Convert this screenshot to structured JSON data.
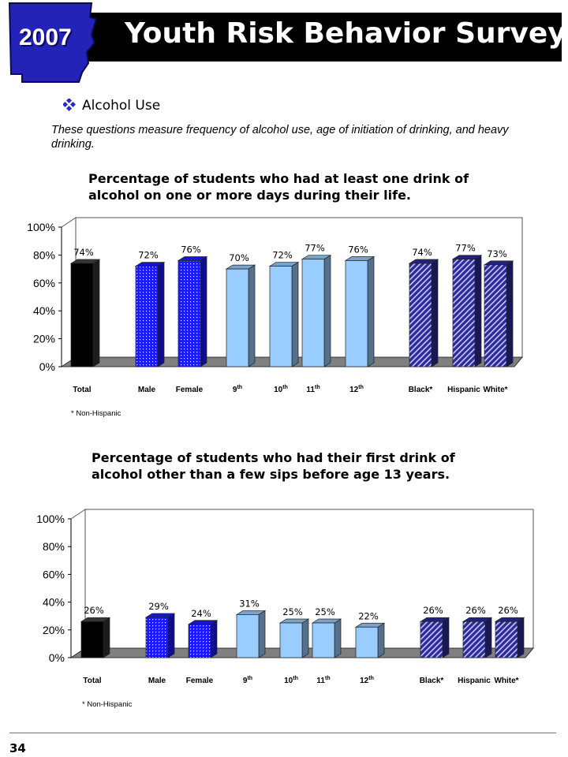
{
  "header": {
    "year": "2007",
    "title": "Youth Risk Behavior Survey"
  },
  "section": {
    "icon": "diamond-bullet-icon",
    "title": "Alcohol Use",
    "description": "These questions measure frequency of alcohol use, age of initiation of drinking, and heavy drinking."
  },
  "colors": {
    "total": "#000000",
    "sex": "#1a1aff",
    "grade": "#99ccff",
    "race": "#2b2b9a",
    "floor": "#808080"
  },
  "chart_data": [
    {
      "type": "bar",
      "title": "Percentage of students who had at least one drink of alcohol on one or more days during their life.",
      "categories": [
        "Total",
        "Male",
        "Female",
        "9th",
        "10th",
        "11th",
        "12th",
        "Black*",
        "Hispanic",
        "White*"
      ],
      "values": [
        74,
        72,
        76,
        70,
        72,
        77,
        76,
        74,
        77,
        73
      ],
      "data_labels": [
        "74%",
        "72%",
        "76%",
        "70%",
        "72%",
        "77%",
        "76%",
        "74%",
        "77%",
        "73%"
      ],
      "ylim": [
        0,
        100
      ],
      "yticks": [
        "0%",
        "20%",
        "40%",
        "60%",
        "80%",
        "100%"
      ],
      "footnote": "* Non-Hispanic"
    },
    {
      "type": "bar",
      "title": "Percentage of students who had their first drink of alcohol other than a few sips before age 13 years.",
      "categories": [
        "Total",
        "Male",
        "Female",
        "9th",
        "10th",
        "11th",
        "12th",
        "Black*",
        "Hispanic",
        "White*"
      ],
      "values": [
        26,
        29,
        24,
        31,
        25,
        25,
        22,
        26,
        26,
        26
      ],
      "data_labels": [
        "26%",
        "29%",
        "24%",
        "31%",
        "25%",
        "25%",
        "22%",
        "26%",
        "26%",
        "26%"
      ],
      "ylim": [
        0,
        100
      ],
      "yticks": [
        "0%",
        "20%",
        "40%",
        "60%",
        "80%",
        "100%"
      ],
      "footnote": "* Non-Hispanic"
    }
  ],
  "page_number": "34"
}
